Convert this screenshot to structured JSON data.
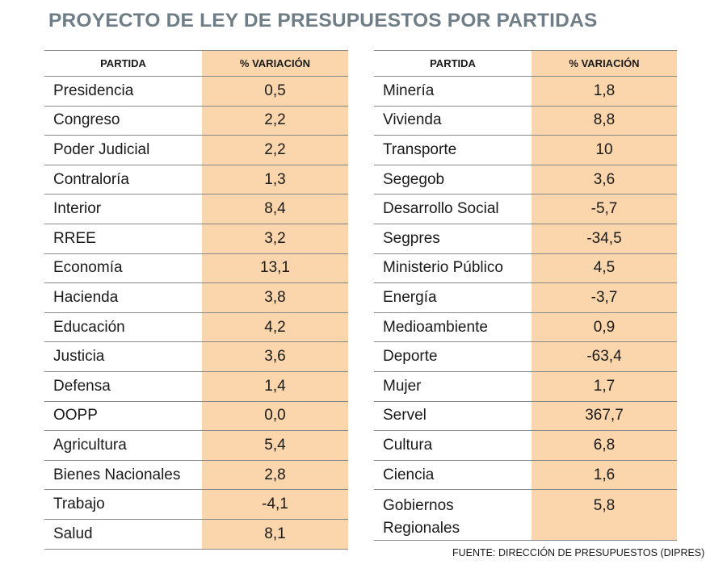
{
  "title": "PROYECTO DE LEY DE PRESUPUESTOS POR PARTIDAS",
  "headers": {
    "partida": "PARTIDA",
    "variacion": "% VARIACIÓN"
  },
  "accent_color": "#fbd6ac",
  "title_color": "#6f7d86",
  "left_rows": [
    {
      "partida": "Presidencia",
      "variacion": "0,5"
    },
    {
      "partida": "Congreso",
      "variacion": "2,2"
    },
    {
      "partida": "Poder Judicial",
      "variacion": "2,2"
    },
    {
      "partida": "Contraloría",
      "variacion": "1,3"
    },
    {
      "partida": "Interior",
      "variacion": "8,4"
    },
    {
      "partida": "RREE",
      "variacion": "3,2"
    },
    {
      "partida": "Economía",
      "variacion": "13,1"
    },
    {
      "partida": "Hacienda",
      "variacion": "3,8"
    },
    {
      "partida": "Educación",
      "variacion": "4,2"
    },
    {
      "partida": "Justicia",
      "variacion": "3,6"
    },
    {
      "partida": "Defensa",
      "variacion": "1,4"
    },
    {
      "partida": "OOPP",
      "variacion": "0,0"
    },
    {
      "partida": "Agricultura",
      "variacion": "5,4"
    },
    {
      "partida": "Bienes Nacionales",
      "variacion": "2,8"
    },
    {
      "partida": "Trabajo",
      "variacion": "-4,1"
    },
    {
      "partida": "Salud",
      "variacion": "8,1"
    }
  ],
  "right_rows": [
    {
      "partida": "Minería",
      "variacion": "1,8"
    },
    {
      "partida": "Vivienda",
      "variacion": "8,8"
    },
    {
      "partida": "Transporte",
      "variacion": "10"
    },
    {
      "partida": "Segegob",
      "variacion": "3,6"
    },
    {
      "partida": "Desarrollo Social",
      "variacion": "-5,7"
    },
    {
      "partida": "Segpres",
      "variacion": "-34,5"
    },
    {
      "partida": "Ministerio Público",
      "variacion": "4,5"
    },
    {
      "partida": "Energía",
      "variacion": "-3,7"
    },
    {
      "partida": "Medioambiente",
      "variacion": "0,9"
    },
    {
      "partida": "Deporte",
      "variacion": "-63,4"
    },
    {
      "partida": "Mujer",
      "variacion": "1,7"
    },
    {
      "partida": "Servel",
      "variacion": "367,7"
    },
    {
      "partida": "Cultura",
      "variacion": "6,8"
    },
    {
      "partida": "Ciencia",
      "variacion": "1,6"
    },
    {
      "partida": "Gobiernos Regionales",
      "variacion": "5,8"
    }
  ],
  "source": "FUENTE: DIRECCIÓN DE PRESUPUESTOS (DIPRES)"
}
